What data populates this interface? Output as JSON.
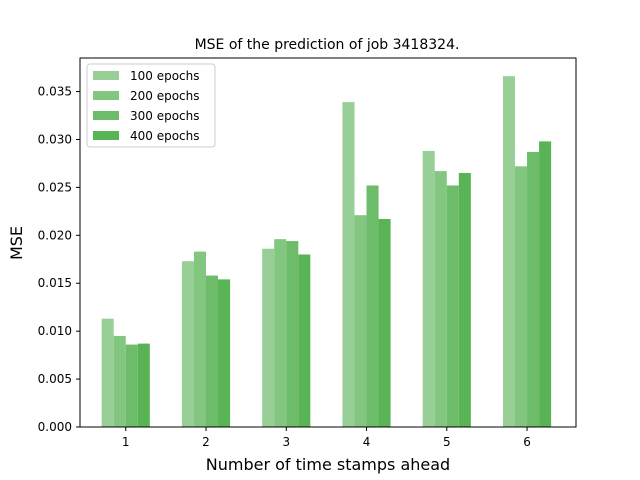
{
  "chart_data": {
    "type": "bar",
    "title": "MSE of the prediction of job 3418324.",
    "xlabel": "Number of time stamps ahead",
    "ylabel": "MSE",
    "categories": [
      "1",
      "2",
      "3",
      "4",
      "5",
      "6"
    ],
    "ylim": [
      0,
      0.0385
    ],
    "yticks": [
      "0.000",
      "0.005",
      "0.010",
      "0.015",
      "0.020",
      "0.025",
      "0.030",
      "0.035"
    ],
    "grid": false,
    "legend_position": "top-left",
    "series": [
      {
        "name": "100 epochs",
        "color": "#98cf96",
        "values": [
          0.0113,
          0.0173,
          0.0186,
          0.0339,
          0.0288,
          0.0366
        ]
      },
      {
        "name": "200 epochs",
        "color": "#83c680",
        "values": [
          0.0095,
          0.0183,
          0.0196,
          0.0221,
          0.0267,
          0.0272
        ]
      },
      {
        "name": "300 epochs",
        "color": "#6cbc69",
        "values": [
          0.0086,
          0.0158,
          0.0194,
          0.0252,
          0.0252,
          0.0287
        ]
      },
      {
        "name": "400 epochs",
        "color": "#58b454",
        "values": [
          0.0087,
          0.0154,
          0.018,
          0.0217,
          0.0265,
          0.0298
        ]
      }
    ]
  }
}
